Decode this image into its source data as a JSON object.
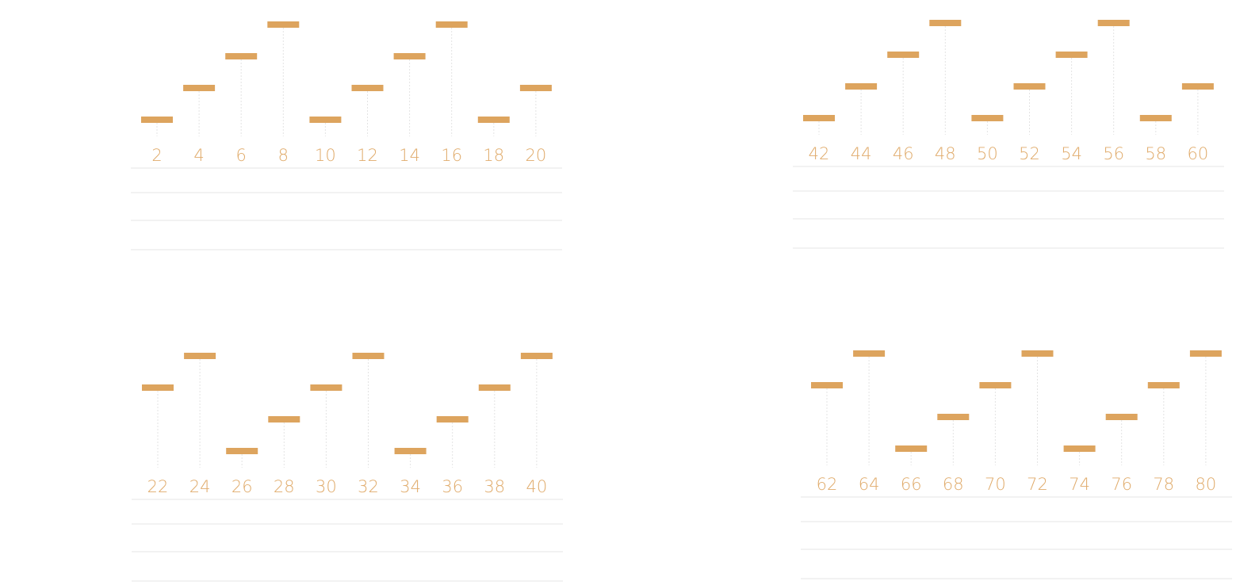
{
  "colors": {
    "mark": "#dda45e",
    "label": "#e0ab6b",
    "stem": "#e3e3e3",
    "rule": "#e6e6e6"
  },
  "chart_data": [
    {
      "type": "scatter",
      "mark": "horizontal-tick",
      "x": [
        "2",
        "4",
        "6",
        "8",
        "10",
        "12",
        "14",
        "16",
        "18",
        "20"
      ],
      "values": [
        1,
        2,
        3,
        4,
        1,
        2,
        3,
        4,
        1,
        2
      ],
      "ylim": [
        1,
        4
      ],
      "grid": false
    },
    {
      "type": "scatter",
      "mark": "horizontal-tick",
      "x": [
        "22",
        "24",
        "26",
        "28",
        "30",
        "32",
        "34",
        "36",
        "38",
        "40"
      ],
      "values": [
        3,
        4,
        1,
        2,
        3,
        4,
        1,
        2,
        3,
        4
      ],
      "ylim": [
        1,
        4
      ],
      "grid": false
    },
    {
      "type": "scatter",
      "mark": "horizontal-tick",
      "x": [
        "42",
        "44",
        "46",
        "48",
        "50",
        "52",
        "54",
        "56",
        "58",
        "60"
      ],
      "values": [
        1,
        2,
        3,
        4,
        1,
        2,
        3,
        4,
        1,
        2
      ],
      "ylim": [
        1,
        4
      ],
      "grid": false
    },
    {
      "type": "scatter",
      "mark": "horizontal-tick",
      "x": [
        "62",
        "64",
        "66",
        "68",
        "70",
        "72",
        "74",
        "76",
        "78",
        "80"
      ],
      "values": [
        3,
        4,
        1,
        2,
        3,
        4,
        1,
        2,
        3,
        4
      ],
      "ylim": [
        1,
        4
      ],
      "grid": false
    }
  ]
}
